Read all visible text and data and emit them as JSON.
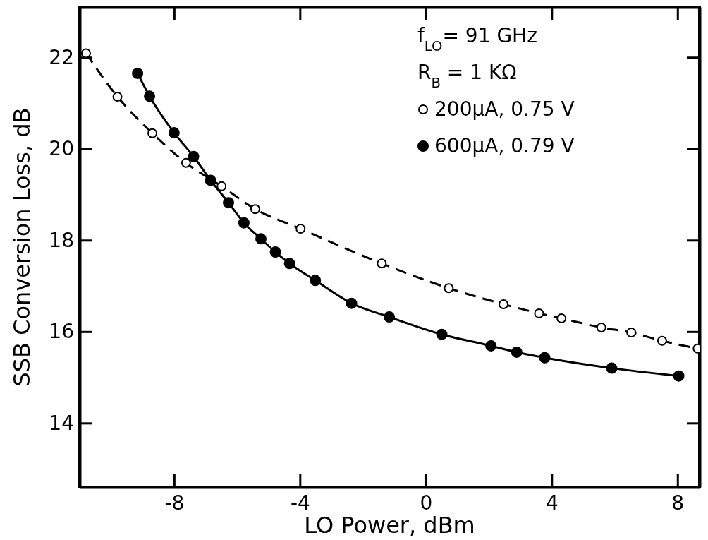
{
  "chart_data": {
    "type": "line",
    "xlabel": "LO Power, dBm",
    "ylabel": "SSB Conversion Loss, dB",
    "annotations": [
      "f$_{LO}$= 91 GHz",
      "R$_{B}$ = 1 KΩ"
    ],
    "xlim": [
      -11,
      8.7
    ],
    "ylim": [
      12.6,
      23.1
    ],
    "xticks": [
      -8,
      -4,
      0,
      4,
      8
    ],
    "yticks": [
      14,
      16,
      18,
      20,
      22
    ],
    "grid": false,
    "legend": "top right",
    "marker": "circle",
    "series": [
      {
        "name": "200μA, 0.75 V",
        "color": "#000000",
        "line_style": "dashed",
        "x": [
          -10.8,
          -9.8,
          -8.69,
          -7.62,
          -6.49,
          -5.42,
          -3.98,
          -1.4,
          0.73,
          2.47,
          3.6,
          4.31,
          5.58,
          6.53,
          7.51,
          8.64
        ],
        "values": [
          22.09,
          21.14,
          20.34,
          19.69,
          19.18,
          18.68,
          18.25,
          17.49,
          16.95,
          16.6,
          16.4,
          16.29,
          16.09,
          15.98,
          15.8,
          15.63
        ]
      },
      {
        "name": "600μA, 0.79 V",
        "color": "#000000",
        "line_style": "solid",
        "x": [
          -9.16,
          -8.78,
          -8.0,
          -7.38,
          -6.84,
          -6.27,
          -5.78,
          -5.24,
          -4.78,
          -4.33,
          -3.51,
          -2.36,
          -1.16,
          0.51,
          2.07,
          2.89,
          3.78,
          5.91,
          8.04
        ],
        "values": [
          21.65,
          21.15,
          20.35,
          19.83,
          19.31,
          18.82,
          18.38,
          18.03,
          17.74,
          17.49,
          17.12,
          16.62,
          16.32,
          15.94,
          15.69,
          15.55,
          15.43,
          15.2,
          15.03
        ]
      }
    ]
  }
}
